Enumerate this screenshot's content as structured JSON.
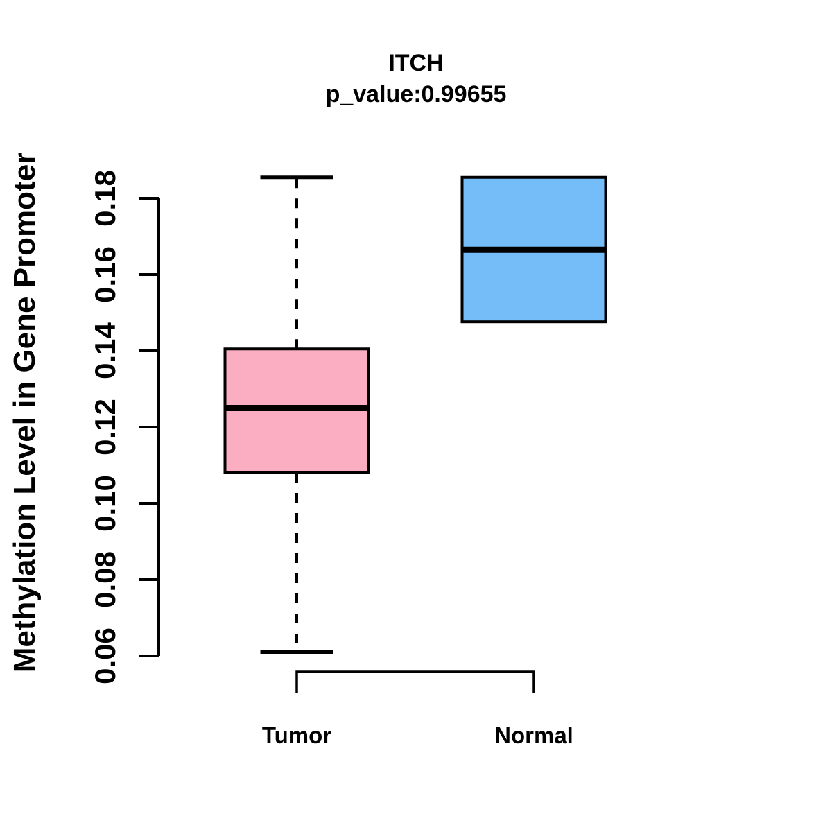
{
  "chart_data": {
    "type": "boxplot",
    "title": "ITCH",
    "subtitle": "p_value:0.99655",
    "gene": "ITCH",
    "p_value": "0.99655",
    "ylabel": "Methylation Level in Gene Promoter",
    "xlabel": "",
    "ylim": [
      0.055,
      0.186
    ],
    "yticks": [
      0.06,
      0.08,
      0.1,
      0.12,
      0.14,
      0.16,
      0.18
    ],
    "ytick_labels": [
      "0.06",
      "0.08",
      "0.10",
      "0.12",
      "0.14",
      "0.16",
      "0.18"
    ],
    "categories": [
      "Tumor",
      "Normal"
    ],
    "series": [
      {
        "name": "Tumor",
        "color": "#FBAEC2",
        "whisker_low": 0.061,
        "q1": 0.108,
        "median": 0.125,
        "q3": 0.1405,
        "whisker_high": 0.1855,
        "whiskers_visible": true
      },
      {
        "name": "Normal",
        "color": "#75BDF8",
        "whisker_low": 0.1476,
        "q1": 0.1476,
        "median": 0.1665,
        "q3": 0.1855,
        "whisker_high": 0.1855,
        "whiskers_visible": false
      }
    ],
    "colors": {
      "box_border": "#000000",
      "median_line": "#000000",
      "axis": "#000000",
      "background": "#FFFFFF",
      "tumor_fill": "#FBAEC2",
      "normal_fill": "#75BDF8"
    },
    "legend": null,
    "grid": false
  }
}
